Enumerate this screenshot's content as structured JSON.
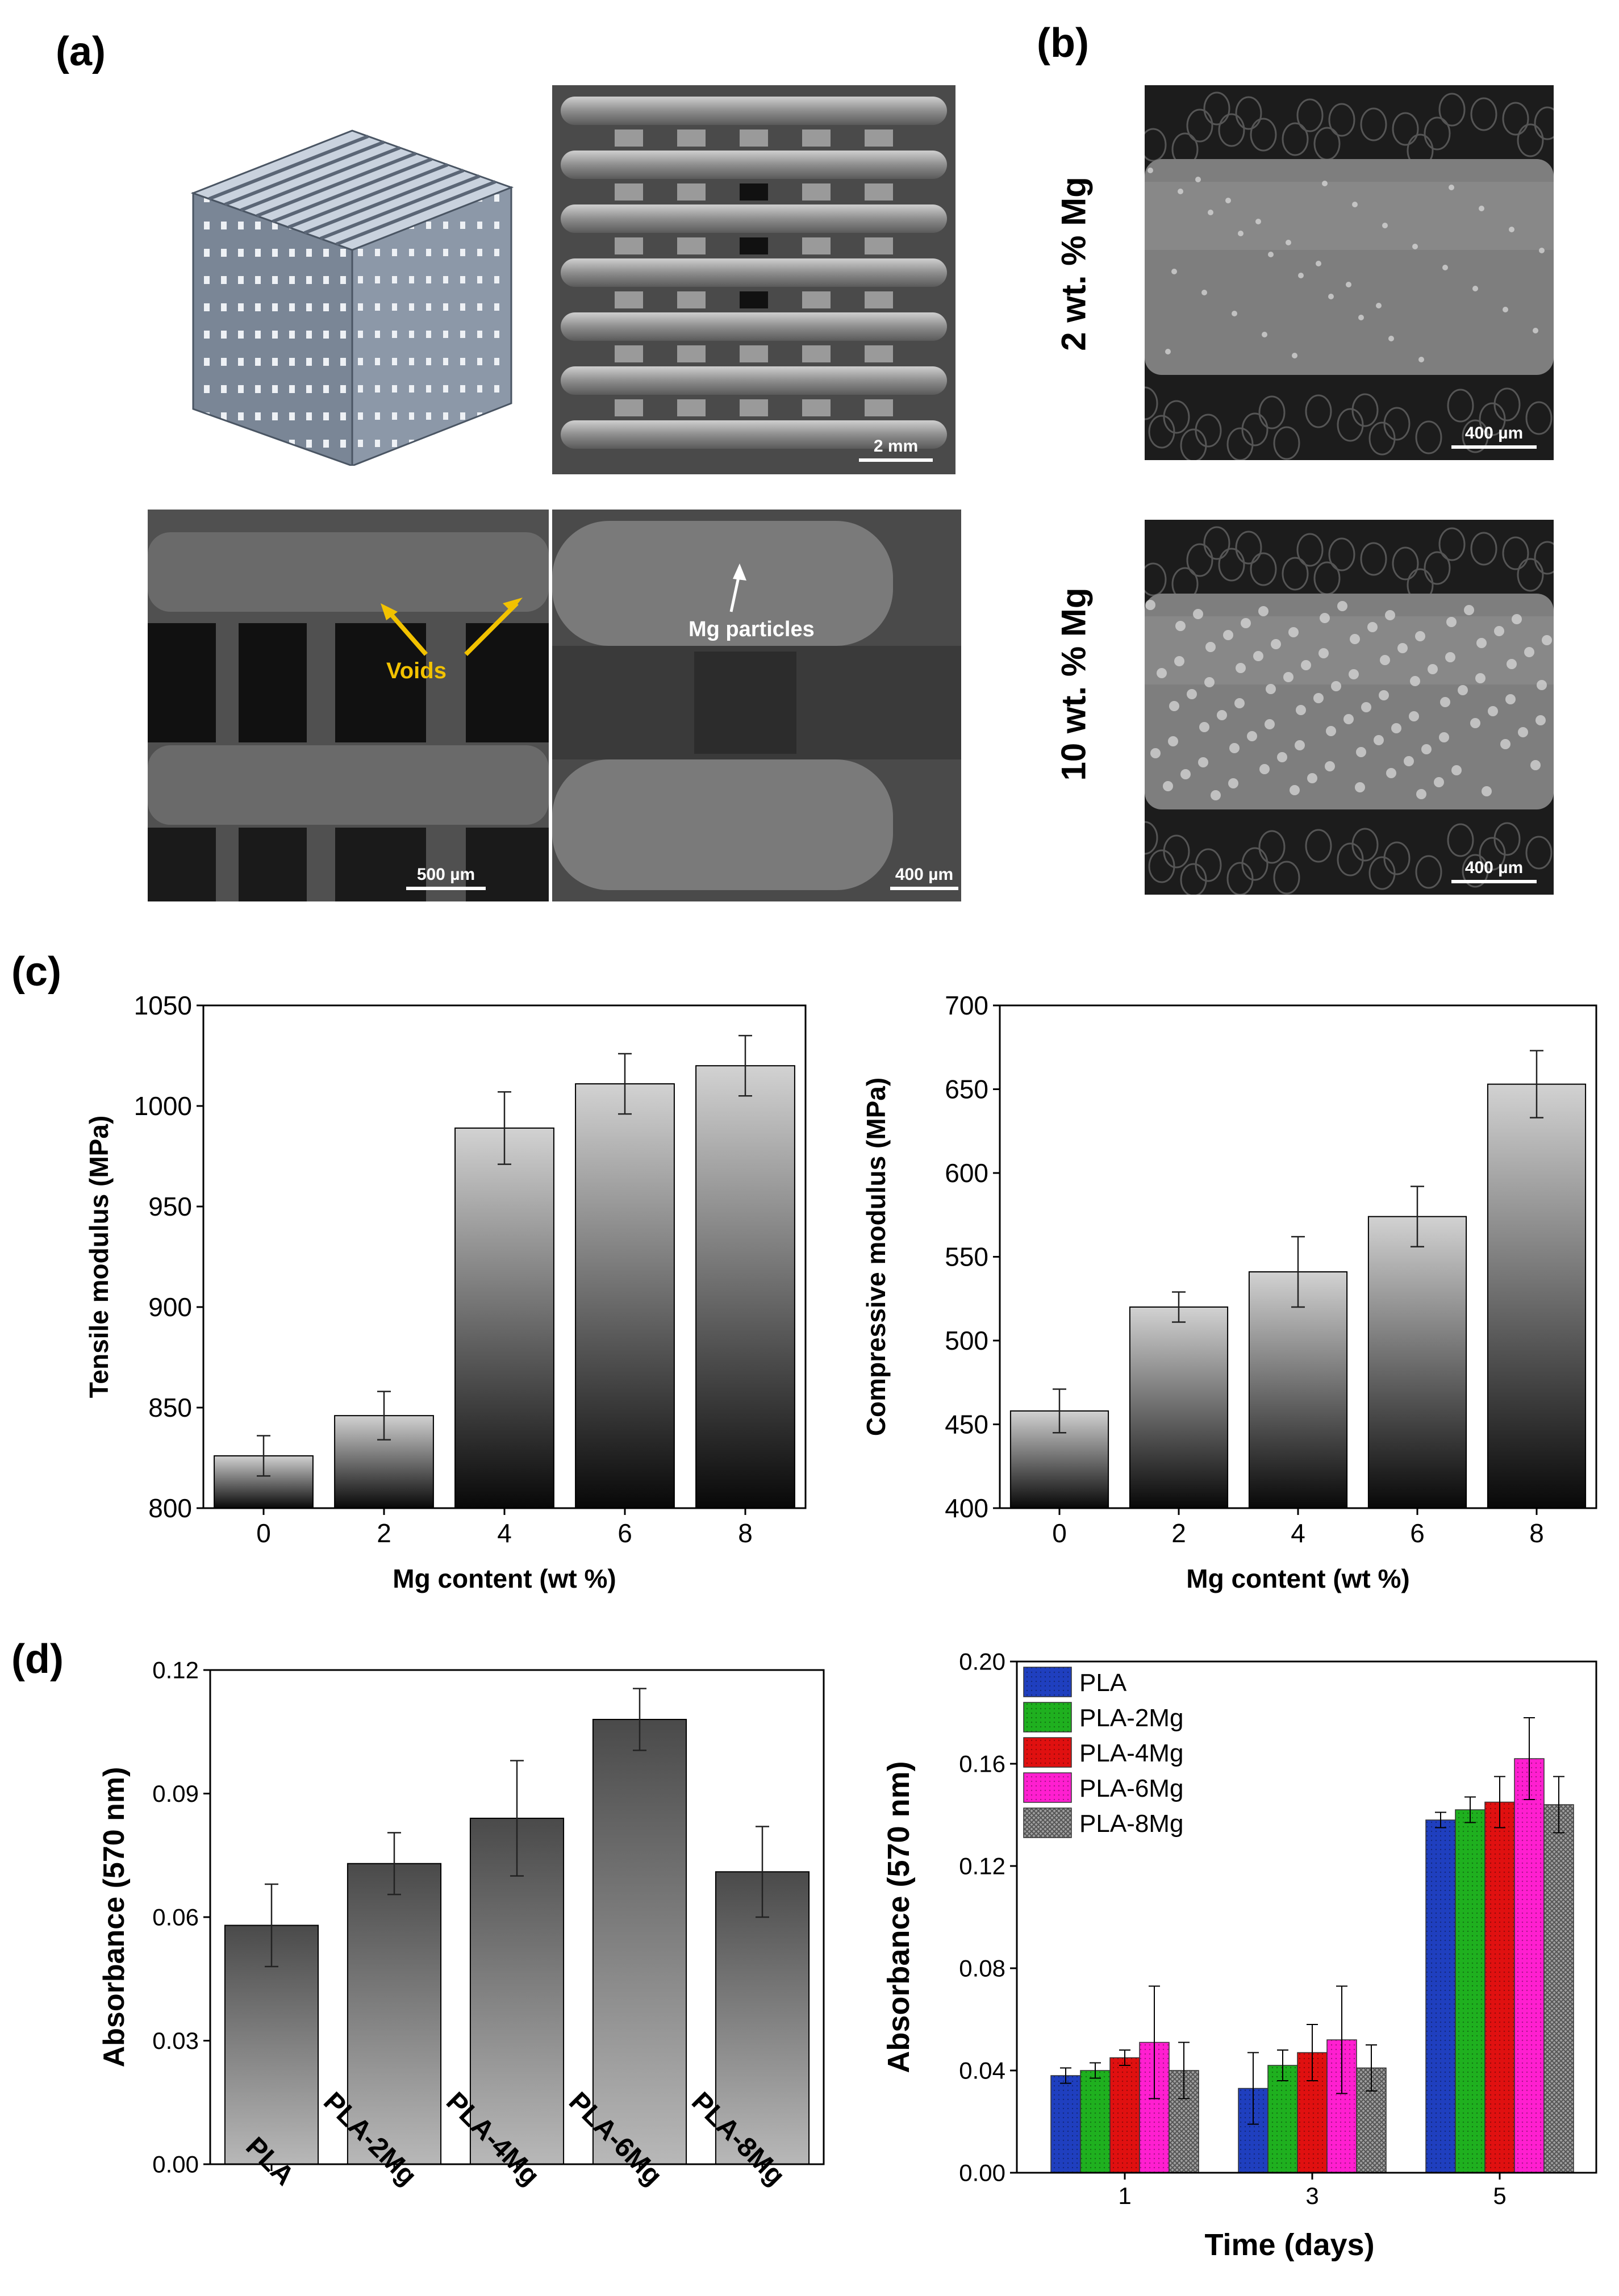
{
  "panels": {
    "a": "(a)",
    "b": "(b)",
    "c": "(c)",
    "d": "(d)"
  },
  "panel_a": {
    "scale_top": "2 mm",
    "scale_bottom_left": "500 µm",
    "scale_bottom_right": "400 µm",
    "annotation_voids": "Voids",
    "annotation_mg": "Mg particles"
  },
  "panel_b": {
    "label_top": "2 wt. % Mg",
    "label_bottom": "10 wt. % Mg",
    "scale_top": "400 µm",
    "scale_bottom": "400 µm"
  },
  "colors": {
    "void_arrow": "#f2c200",
    "blue": "#1f3fbf",
    "green": "#1fb01f",
    "red": "#e01010",
    "magenta": "#ff1fd0",
    "gray": "#a0a0a0"
  },
  "chart_data": [
    {
      "type": "bar",
      "title": "",
      "xlabel": "Mg content (wt %)",
      "ylabel": "Tensile modulus (MPa)",
      "categories": [
        "0",
        "2",
        "4",
        "6",
        "8"
      ],
      "values": [
        826,
        846,
        989,
        1011,
        1020
      ],
      "errors": [
        10,
        12,
        18,
        15,
        15
      ],
      "ylim": [
        800,
        1050
      ],
      "yticks": [
        800,
        850,
        900,
        950,
        1000,
        1050
      ],
      "ytick_labels": [
        "800",
        "850",
        "900",
        "950",
        "1000",
        "1050"
      ]
    },
    {
      "type": "bar",
      "title": "",
      "xlabel": "Mg content (wt %)",
      "ylabel": "Compressive modulus (MPa)",
      "categories": [
        "0",
        "2",
        "4",
        "6",
        "8"
      ],
      "values": [
        458,
        520,
        541,
        574,
        653
      ],
      "errors": [
        13,
        9,
        21,
        18,
        20
      ],
      "ylim": [
        400,
        700
      ],
      "yticks": [
        400,
        450,
        500,
        550,
        600,
        650,
        700
      ],
      "ytick_labels": [
        "400",
        "450",
        "500",
        "550",
        "600",
        "650",
        "700"
      ]
    },
    {
      "type": "bar",
      "title": "",
      "xlabel": "",
      "ylabel": "Absorbance (570 nm)",
      "categories": [
        "PLA",
        "PLA-2Mg",
        "PLA-4Mg",
        "PLA-6Mg",
        "PLA-8Mg"
      ],
      "values": [
        0.058,
        0.073,
        0.084,
        0.108,
        0.071
      ],
      "errors": [
        0.01,
        0.0075,
        0.014,
        0.0075,
        0.011
      ],
      "ylim": [
        0,
        0.12
      ],
      "yticks": [
        0,
        0.03,
        0.06,
        0.09,
        0.12
      ],
      "ytick_labels": [
        "0.00",
        "0.03",
        "0.06",
        "0.09",
        "0.12"
      ]
    },
    {
      "type": "bar",
      "title": "",
      "xlabel": "Time (days)",
      "ylabel": "Absorbance (570 nm)",
      "categories": [
        "1",
        "3",
        "5"
      ],
      "series": [
        {
          "name": "PLA",
          "values": [
            0.038,
            0.033,
            0.138
          ],
          "errors": [
            0.003,
            0.014,
            0.003
          ]
        },
        {
          "name": "PLA-2Mg",
          "values": [
            0.04,
            0.042,
            0.142
          ],
          "errors": [
            0.003,
            0.006,
            0.005
          ]
        },
        {
          "name": "PLA-4Mg",
          "values": [
            0.045,
            0.047,
            0.145
          ],
          "errors": [
            0.003,
            0.011,
            0.01
          ]
        },
        {
          "name": "PLA-6Mg",
          "values": [
            0.051,
            0.052,
            0.162
          ],
          "errors": [
            0.022,
            0.021,
            0.016
          ]
        },
        {
          "name": "PLA-8Mg",
          "values": [
            0.04,
            0.041,
            0.144
          ],
          "errors": [
            0.011,
            0.009,
            0.011
          ]
        }
      ],
      "ylim": [
        0,
        0.2
      ],
      "yticks": [
        0,
        0.04,
        0.08,
        0.12,
        0.16,
        0.2
      ],
      "ytick_labels": [
        "0.00",
        "0.04",
        "0.08",
        "0.12",
        "0.16",
        "0.20"
      ],
      "legend": "top-left"
    }
  ]
}
